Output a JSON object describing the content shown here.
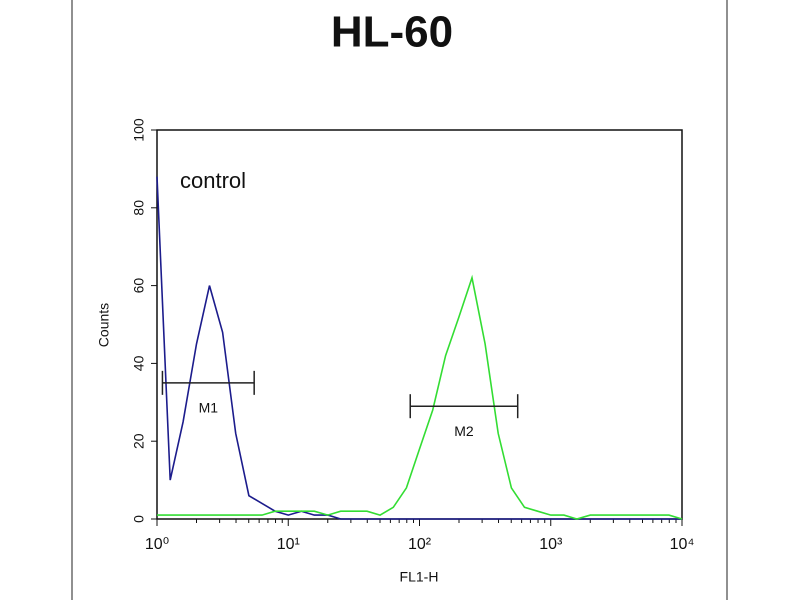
{
  "chart_data": {
    "type": "line",
    "title": "HL-60",
    "x_label": "FL1-H",
    "y_label": "Counts",
    "annotation": "control",
    "x_log": true,
    "xlim": [
      1,
      10000
    ],
    "xticks": [
      {
        "value": 1,
        "label": "10⁰"
      },
      {
        "value": 10,
        "label": "10¹"
      },
      {
        "value": 100,
        "label": "10²"
      },
      {
        "value": 1000,
        "label": "10³"
      },
      {
        "value": 10000,
        "label": "10⁴"
      }
    ],
    "ylim": [
      0,
      100
    ],
    "yticks": [
      0,
      20,
      40,
      60,
      80,
      100
    ],
    "x": [
      1,
      1.26,
      1.58,
      2,
      2.51,
      3.16,
      3.98,
      5.01,
      6.31,
      7.94,
      10,
      12.6,
      15.8,
      20,
      25.1,
      31.6,
      39.8,
      50.1,
      63.1,
      79.4,
      100,
      126,
      158,
      200,
      251,
      316,
      398,
      501,
      631,
      794,
      1000,
      1260,
      1580,
      2000,
      2510,
      3160,
      3980,
      5010,
      6310,
      7940,
      10000
    ],
    "series": [
      {
        "color": "#1c1c8c",
        "values": [
          88,
          10,
          25,
          45,
          60,
          48,
          22,
          6,
          4,
          2,
          1,
          2,
          1,
          1,
          0,
          0,
          0,
          0,
          0,
          0,
          0,
          0,
          0,
          0,
          0,
          0,
          0,
          0,
          0,
          0,
          0,
          0,
          0,
          0,
          0,
          0,
          0,
          0,
          0,
          0,
          0
        ]
      },
      {
        "color": "#33dd33",
        "values": [
          1,
          1,
          1,
          1,
          1,
          1,
          1,
          1,
          1,
          2,
          2,
          2,
          2,
          1,
          2,
          2,
          2,
          1,
          3,
          8,
          18,
          28,
          42,
          52,
          62,
          45,
          22,
          8,
          3,
          2,
          1,
          1,
          0,
          1,
          1,
          1,
          1,
          1,
          1,
          1,
          0
        ]
      }
    ],
    "markers": [
      {
        "label": "M1",
        "range": [
          1.1,
          5.5
        ],
        "y": 35
      },
      {
        "label": "M2",
        "range": [
          85,
          560
        ],
        "y": 29
      }
    ]
  }
}
